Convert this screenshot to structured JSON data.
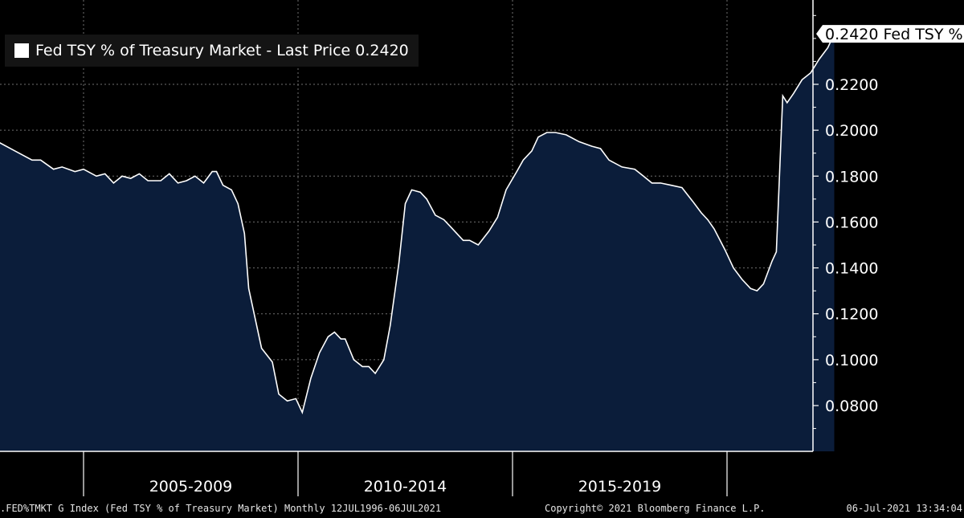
{
  "colors": {
    "background": "#000000",
    "area_fill": "#0b1d3a",
    "line": "#ffffff",
    "axis": "#ffffff",
    "grid": "#6f6f6f",
    "legend_bg": "#141414"
  },
  "legend": {
    "text": "Fed TSY % of Treasury Market - Last Price 0.2420"
  },
  "footer": {
    "left": ".FED%TMKT G Index (Fed TSY % of Treasury Market)  Monthly 12JUL1996-06JUL2021",
    "middle": "Copyright© 2021 Bloomberg Finance L.P.",
    "right": "06-Jul-2021 13:34:04"
  },
  "chart_data": {
    "type": "area",
    "title": "Fed TSY % of Treasury Market - Last Price 0.2420",
    "xlabel": "",
    "ylabel": "",
    "x_start": 2002.42,
    "x_end": 2021.5,
    "ylim": [
      0.061,
      0.253
    ],
    "y_ticks": [
      "0.0800",
      "0.1000",
      "0.1200",
      "0.1400",
      "0.1600",
      "0.1800",
      "0.2000",
      "0.2200"
    ],
    "x_bands": [
      {
        "label": "2005-2009",
        "start": 2005,
        "end": 2010
      },
      {
        "label": "2010-2014",
        "start": 2010,
        "end": 2015
      },
      {
        "label": "2015-2019",
        "start": 2015,
        "end": 2020
      }
    ],
    "grid": true,
    "last_value_label": "0.2420 Fed TSY %",
    "last_value": 0.242,
    "series": [
      {
        "name": "Fed TSY % of Treasury Market",
        "points": [
          [
            2002.42,
            0.198
          ],
          [
            2002.7,
            0.194
          ],
          [
            2003.0,
            0.195
          ],
          [
            2003.4,
            0.191
          ],
          [
            2003.8,
            0.187
          ],
          [
            2004.0,
            0.187
          ],
          [
            2004.3,
            0.183
          ],
          [
            2004.5,
            0.184
          ],
          [
            2004.8,
            0.182
          ],
          [
            2005.0,
            0.183
          ],
          [
            2005.3,
            0.18
          ],
          [
            2005.5,
            0.181
          ],
          [
            2005.7,
            0.177
          ],
          [
            2005.9,
            0.18
          ],
          [
            2006.1,
            0.179
          ],
          [
            2006.3,
            0.181
          ],
          [
            2006.5,
            0.178
          ],
          [
            2006.8,
            0.178
          ],
          [
            2007.0,
            0.181
          ],
          [
            2007.2,
            0.177
          ],
          [
            2007.4,
            0.178
          ],
          [
            2007.6,
            0.18
          ],
          [
            2007.8,
            0.177
          ],
          [
            2008.0,
            0.182
          ],
          [
            2008.1,
            0.182
          ],
          [
            2008.25,
            0.176
          ],
          [
            2008.45,
            0.174
          ],
          [
            2008.6,
            0.168
          ],
          [
            2008.75,
            0.155
          ],
          [
            2008.85,
            0.131
          ],
          [
            2009.0,
            0.118
          ],
          [
            2009.15,
            0.105
          ],
          [
            2009.4,
            0.099
          ],
          [
            2009.55,
            0.085
          ],
          [
            2009.75,
            0.082
          ],
          [
            2009.95,
            0.083
          ],
          [
            2010.1,
            0.077
          ],
          [
            2010.3,
            0.092
          ],
          [
            2010.5,
            0.103
          ],
          [
            2010.7,
            0.11
          ],
          [
            2010.85,
            0.112
          ],
          [
            2011.0,
            0.109
          ],
          [
            2011.1,
            0.109
          ],
          [
            2011.3,
            0.1
          ],
          [
            2011.5,
            0.097
          ],
          [
            2011.65,
            0.097
          ],
          [
            2011.8,
            0.094
          ],
          [
            2012.0,
            0.1
          ],
          [
            2012.15,
            0.115
          ],
          [
            2012.35,
            0.142
          ],
          [
            2012.5,
            0.168
          ],
          [
            2012.65,
            0.174
          ],
          [
            2012.85,
            0.173
          ],
          [
            2013.0,
            0.17
          ],
          [
            2013.2,
            0.163
          ],
          [
            2013.4,
            0.161
          ],
          [
            2013.55,
            0.158
          ],
          [
            2013.7,
            0.155
          ],
          [
            2013.85,
            0.152
          ],
          [
            2014.0,
            0.152
          ],
          [
            2014.2,
            0.15
          ],
          [
            2014.45,
            0.156
          ],
          [
            2014.65,
            0.162
          ],
          [
            2014.85,
            0.174
          ],
          [
            2015.1,
            0.182
          ],
          [
            2015.25,
            0.187
          ],
          [
            2015.45,
            0.191
          ],
          [
            2015.6,
            0.197
          ],
          [
            2015.8,
            0.199
          ],
          [
            2016.0,
            0.199
          ],
          [
            2016.25,
            0.198
          ],
          [
            2016.55,
            0.195
          ],
          [
            2016.85,
            0.193
          ],
          [
            2017.05,
            0.192
          ],
          [
            2017.25,
            0.187
          ],
          [
            2017.55,
            0.184
          ],
          [
            2017.85,
            0.183
          ],
          [
            2018.05,
            0.18
          ],
          [
            2018.25,
            0.177
          ],
          [
            2018.45,
            0.177
          ],
          [
            2018.7,
            0.176
          ],
          [
            2018.95,
            0.175
          ],
          [
            2019.2,
            0.169
          ],
          [
            2019.4,
            0.164
          ],
          [
            2019.55,
            0.161
          ],
          [
            2019.7,
            0.157
          ],
          [
            2019.95,
            0.148
          ],
          [
            2020.15,
            0.14
          ],
          [
            2020.35,
            0.135
          ],
          [
            2020.55,
            0.131
          ],
          [
            2020.7,
            0.13
          ],
          [
            2020.85,
            0.133
          ],
          [
            2021.05,
            0.143
          ],
          [
            2021.15,
            0.147
          ],
          [
            2021.3,
            0.215
          ],
          [
            2021.4,
            0.212
          ],
          [
            2021.55,
            0.216
          ],
          [
            2021.75,
            0.222
          ],
          [
            2021.95,
            0.225
          ],
          [
            2022.15,
            0.231
          ],
          [
            2022.35,
            0.236
          ],
          [
            2022.5,
            0.242
          ]
        ]
      }
    ]
  }
}
